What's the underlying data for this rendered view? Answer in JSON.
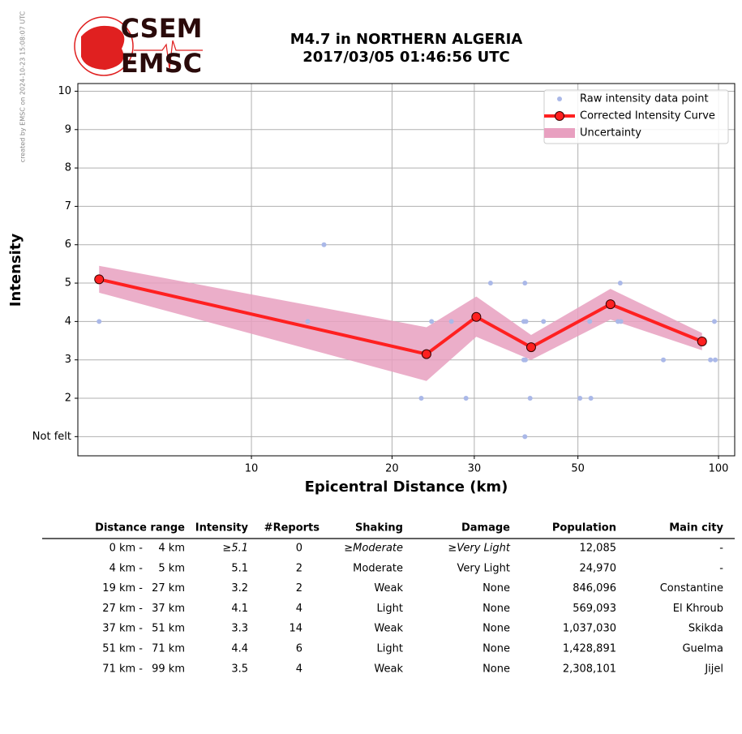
{
  "logo": {
    "top": "CSEM",
    "bottom": "EMSC"
  },
  "credit": "created by EMSC on 2024-10-23 15:08:07 UTC",
  "chart_data": {
    "type": "line",
    "title": "M4.7 in NORTHERN ALGERIA",
    "subtitle": "2017/03/05 01:46:56 UTC",
    "x_label": "Epicentral Distance (km)",
    "y_label": "Intensity",
    "x_scale": "log",
    "grid": true,
    "legend": "upper right",
    "xlim": [
      4.25,
      108.3
    ],
    "xticks": [
      10,
      20,
      30,
      50,
      100
    ],
    "ylim": [
      0.5,
      10.2
    ],
    "yticks": [
      {
        "value": 1,
        "label": "Not felt"
      },
      2,
      3,
      4,
      5,
      6,
      7,
      8,
      9,
      10
    ],
    "series": [
      {
        "name": "Raw intensity data point",
        "type": "scatter",
        "color": "#aab8e8",
        "x": [
          4.72,
          14.3,
          13.2,
          23.1,
          24.3,
          26.8,
          28.8,
          32.5,
          38.5,
          38.3,
          38.7,
          38.3,
          38.6,
          38.5,
          39.5,
          42.2,
          50.5,
          53.3,
          53,
          60.9,
          61.8,
          61.6,
          76.2,
          96.1,
          98.4,
          98
        ],
        "values": [
          4,
          6,
          4,
          2,
          4,
          4,
          2,
          5,
          5,
          4,
          4,
          3,
          3,
          1,
          2,
          4,
          2,
          2,
          4,
          4,
          4,
          5,
          3,
          3,
          3,
          4
        ]
      },
      {
        "name": "Corrected Intensity Curve",
        "type": "line",
        "color": "#ff2020",
        "x": [
          4.72,
          23.7,
          30.3,
          39.7,
          58.7,
          92.2
        ],
        "values": [
          5.1,
          3.15,
          4.12,
          3.33,
          4.45,
          3.48
        ]
      },
      {
        "name": "Uncertainty",
        "type": "band",
        "color": "#e8a0c0",
        "x": [
          4.72,
          23.7,
          30.3,
          39.7,
          58.7,
          92.2
        ],
        "upper": [
          5.45,
          3.85,
          4.65,
          3.65,
          4.85,
          3.7
        ],
        "lower": [
          4.75,
          2.45,
          3.6,
          3.0,
          4.05,
          3.25
        ]
      }
    ]
  },
  "table": {
    "header": [
      "Distance range",
      "Intensity",
      "#Reports",
      "Shaking",
      "Damage",
      "Population",
      "Main city"
    ],
    "rows": [
      [
        "0 km -",
        "4 km",
        "≥5.1",
        "0",
        "≥Moderate",
        "≥Very Light",
        "12,085",
        "-"
      ],
      [
        "4 km -",
        "5 km",
        "5.1",
        "2",
        "Moderate",
        "Very Light",
        "24,970",
        "-"
      ],
      [
        "19 km -",
        "27 km",
        "3.2",
        "2",
        "Weak",
        "None",
        "846,096",
        "Constantine"
      ],
      [
        "27 km -",
        "37 km",
        "4.1",
        "4",
        "Light",
        "None",
        "569,093",
        "El Khroub"
      ],
      [
        "37 km -",
        "51 km",
        "3.3",
        "14",
        "Weak",
        "None",
        "1,037,030",
        "Skikda"
      ],
      [
        "51 km -",
        "71 km",
        "4.4",
        "6",
        "Light",
        "None",
        "1,428,891",
        "Guelma"
      ],
      [
        "71 km -",
        "99 km",
        "3.5",
        "4",
        "Weak",
        "None",
        "2,308,101",
        "Jijel"
      ]
    ]
  }
}
